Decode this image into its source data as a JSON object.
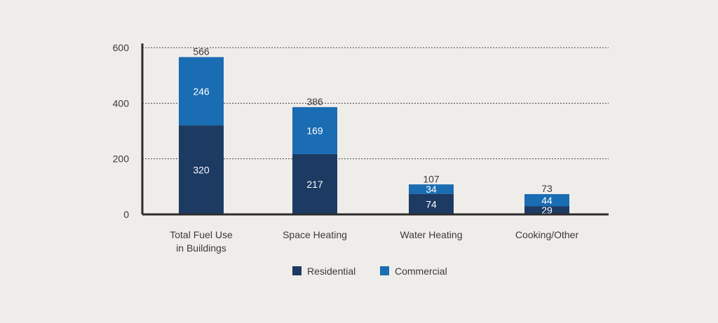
{
  "chart_data": {
    "type": "bar",
    "stacked": true,
    "categories": [
      [
        "Total Fuel Use",
        "in Buildings"
      ],
      [
        "Space Heating"
      ],
      [
        "Water Heating"
      ],
      [
        "Cooking/Other"
      ]
    ],
    "series": [
      {
        "name": "Residential",
        "values": [
          320,
          217,
          74,
          29
        ],
        "color": "#1d3a63"
      },
      {
        "name": "Commercial",
        "values": [
          246,
          169,
          34,
          44
        ],
        "color": "#1a6cb3"
      }
    ],
    "totals": [
      566,
      386,
      107,
      73
    ],
    "y_ticks": [
      0,
      200,
      400,
      600
    ],
    "ylim": [
      0,
      600
    ],
    "grid": "dotted horizontal",
    "legend": "bottom-center",
    "colors": {
      "background": "#efedea",
      "axis": "#2b2b2b",
      "text": "#3a3a3a",
      "label_on_bar": "#ffffff"
    }
  }
}
